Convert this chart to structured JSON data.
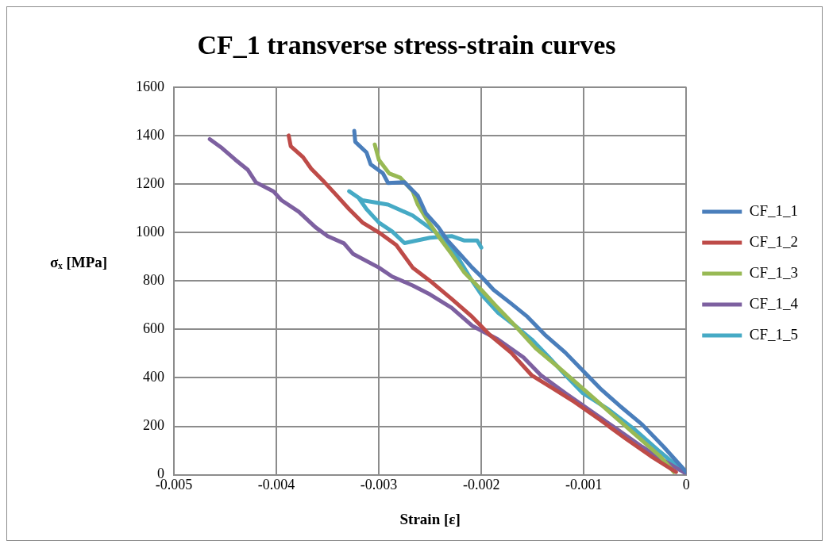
{
  "chart_data": {
    "type": "line",
    "title": "CF_1 transverse stress-strain curves",
    "xlabel": "Strain [ε]",
    "ylabel": "σₓ [MPa]",
    "xlim": [
      -0.005,
      0
    ],
    "xticks": [
      -0.005,
      -0.004,
      -0.003,
      -0.002,
      -0.001,
      0
    ],
    "ylim": [
      0,
      1600
    ],
    "yticks": [
      0,
      200,
      400,
      600,
      800,
      1000,
      1200,
      1400,
      1600
    ],
    "grid": true,
    "legend": "right",
    "marker": "none",
    "line_style": "solid",
    "series": [
      {
        "name": "CF_1_1",
        "color": "#4a7ebb",
        "x": [
          -0.00324,
          -0.00323,
          -0.00312,
          -0.00308,
          -0.00296,
          -0.00291,
          -0.00275,
          -0.00262,
          -0.00254,
          -0.00242,
          -0.00233,
          -0.00221,
          -0.00209,
          -0.002,
          -0.00188,
          -0.00171,
          -0.00155,
          -0.00138,
          -0.00118,
          -0.00101,
          -0.00084,
          -0.00064,
          -0.00043,
          -0.00022,
          0
        ],
        "values": [
          1419,
          1374,
          1330,
          1281,
          1244,
          1204,
          1207,
          1152,
          1078,
          1022,
          967,
          911,
          855,
          818,
          763,
          707,
          652,
          578,
          504,
          430,
          356,
          281,
          207,
          115,
          11
        ]
      },
      {
        "name": "CF_1_2",
        "color": "#be4b48",
        "x": [
          -0.00388,
          -0.00386,
          -0.00374,
          -0.00366,
          -0.00353,
          -0.00341,
          -0.00329,
          -0.00316,
          -0.003,
          -0.00283,
          -0.00267,
          -0.0025,
          -0.00229,
          -0.00209,
          -0.00192,
          -0.00171,
          -0.00151,
          -0.0013,
          -0.00109,
          -0.00084,
          -0.0006,
          -0.00035,
          -0.0001
        ],
        "values": [
          1400,
          1356,
          1311,
          1263,
          1207,
          1152,
          1096,
          1041,
          1000,
          948,
          855,
          800,
          726,
          652,
          578,
          504,
          411,
          356,
          300,
          226,
          152,
          78,
          11
        ]
      },
      {
        "name": "CF_1_3",
        "color": "#98b954",
        "x": [
          -0.00304,
          -0.003,
          -0.0029,
          -0.00279,
          -0.00267,
          -0.00262,
          -0.00254,
          -0.00242,
          -0.00229,
          -0.00217,
          -0.002,
          -0.00184,
          -0.00167,
          -0.00147,
          -0.00126,
          -0.00101,
          -0.00076,
          -0.00051,
          -0.00026,
          -0.00012
        ],
        "values": [
          1363,
          1300,
          1244,
          1226,
          1170,
          1115,
          1059,
          985,
          911,
          837,
          763,
          689,
          615,
          522,
          448,
          356,
          263,
          170,
          78,
          11
        ]
      },
      {
        "name": "CF_1_4",
        "color": "#7d60a0",
        "x": [
          -0.00465,
          -0.00453,
          -0.0044,
          -0.00428,
          -0.0042,
          -0.00403,
          -0.00395,
          -0.00378,
          -0.00362,
          -0.0035,
          -0.00334,
          -0.00325,
          -0.003,
          -0.00287,
          -0.00267,
          -0.0025,
          -0.00229,
          -0.00209,
          -0.00184,
          -0.00159,
          -0.00142,
          -0.00118,
          -0.00093,
          -0.00068,
          -0.00043,
          -0.00022,
          0
        ],
        "values": [
          1385,
          1348,
          1300,
          1259,
          1207,
          1170,
          1133,
          1085,
          1022,
          985,
          955,
          911,
          855,
          818,
          781,
          744,
          689,
          615,
          559,
          485,
          411,
          337,
          263,
          189,
          115,
          59,
          4
        ]
      },
      {
        "name": "CF_1_5",
        "color": "#46aac5",
        "x": [
          -2e-05,
          -0.00026,
          -0.00051,
          -0.00076,
          -0.00101,
          -0.00118,
          -0.00134,
          -0.00151,
          -0.00167,
          -0.00184,
          -0.002,
          -0.00209,
          -0.00217,
          -0.00225,
          -0.00242,
          -0.00267,
          -0.00291,
          -0.00316,
          -0.00329,
          -0.0032,
          -0.00312,
          -0.003,
          -0.00287,
          -0.00275,
          -0.0025,
          -0.00229,
          -0.00217,
          -0.00204,
          -0.002
        ],
        "values": [
          11,
          96,
          189,
          270,
          337,
          411,
          485,
          559,
          615,
          670,
          744,
          800,
          856,
          911,
          993,
          1070,
          1115,
          1133,
          1170,
          1144,
          1096,
          1041,
          1004,
          956,
          978,
          985,
          967,
          967,
          937
        ]
      }
    ]
  }
}
